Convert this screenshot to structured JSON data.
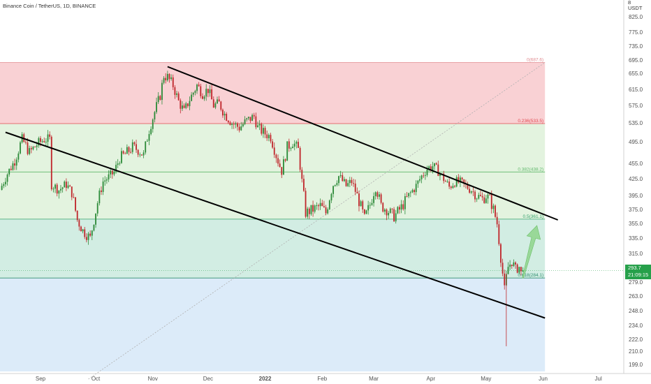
{
  "symbol_title": "Binance Coin / TetherUS, 1D, BINANCE",
  "axis_unit": [
    "8",
    "USDT"
  ],
  "current_price": "293.7",
  "countdown": "21:09:15",
  "colors": {
    "up": "#2e8b3a",
    "down": "#c0282d",
    "zone_red": "#f9d1d4",
    "zone_green": "#e3f3df",
    "zone_teal": "#d2ede3",
    "zone_blue": "#dcebf9",
    "badge": "#26a04a",
    "arrow": "#8fd48b"
  },
  "chart_data": {
    "type": "candlestick",
    "title": "Binance Coin / TetherUS, 1D, BINANCE",
    "ylabel": "USDT",
    "ylim": [
      186,
      870
    ],
    "xlim": [
      "2021-08-10",
      "2022-07-11"
    ],
    "y_ticks": [
      "825.0",
      "775.0",
      "735.0",
      "695.0",
      "655.0",
      "615.0",
      "575.0",
      "535.0",
      "495.0",
      "455.0",
      "425.0",
      "395.0",
      "375.0",
      "355.0",
      "335.0",
      "315.0",
      "279.0",
      "263.0",
      "248.0",
      "234.0",
      "222.0",
      "210.0",
      "199.0"
    ],
    "x_ticks": [
      {
        "label": "Sep",
        "date": "2021-09-01"
      },
      {
        "label": "Oct",
        "date": "2021-10-01"
      },
      {
        "label": "Nov",
        "date": "2021-11-01"
      },
      {
        "label": "Dec",
        "date": "2021-12-01"
      },
      {
        "label": "2022",
        "date": "2022-01-01"
      },
      {
        "label": "Feb",
        "date": "2022-02-01"
      },
      {
        "label": "Mar",
        "date": "2022-03-01"
      },
      {
        "label": "Apr",
        "date": "2022-04-01"
      },
      {
        "label": "May",
        "date": "2022-05-01"
      },
      {
        "label": "Jun",
        "date": "2022-06-01"
      },
      {
        "label": "Jul",
        "date": "2022-07-01"
      }
    ],
    "fib_levels": [
      {
        "label": "0(687.6)",
        "value": 687.6,
        "color": "#e08a8f"
      },
      {
        "label": "0.236(533.5)",
        "value": 533.5,
        "color": "#e0474f"
      },
      {
        "label": "0.382(438.2)",
        "value": 438.2,
        "color": "#5fb86a"
      },
      {
        "label": "0.5(361.1)",
        "value": 361.1,
        "color": "#33a06a"
      },
      {
        "label": "0.618(284.1)",
        "value": 284.1,
        "color": "#2f8e70"
      }
    ],
    "series_close": [
      {
        "date": "2021-08-10",
        "close": 405
      },
      {
        "date": "2021-08-14",
        "close": 435
      },
      {
        "date": "2021-08-18",
        "close": 460
      },
      {
        "date": "2021-08-22",
        "close": 500
      },
      {
        "date": "2021-08-26",
        "close": 475
      },
      {
        "date": "2021-08-30",
        "close": 490
      },
      {
        "date": "2021-09-03",
        "close": 500
      },
      {
        "date": "2021-09-06",
        "close": 500
      },
      {
        "date": "2021-09-07",
        "close": 415
      },
      {
        "date": "2021-09-11",
        "close": 405
      },
      {
        "date": "2021-09-15",
        "close": 415
      },
      {
        "date": "2021-09-18",
        "close": 400
      },
      {
        "date": "2021-09-21",
        "close": 360
      },
      {
        "date": "2021-09-24",
        "close": 345
      },
      {
        "date": "2021-09-26",
        "close": 340
      },
      {
        "date": "2021-09-28",
        "close": 335
      },
      {
        "date": "2021-10-02",
        "close": 385
      },
      {
        "date": "2021-10-05",
        "close": 420
      },
      {
        "date": "2021-10-08",
        "close": 428
      },
      {
        "date": "2021-10-11",
        "close": 438
      },
      {
        "date": "2021-10-14",
        "close": 465
      },
      {
        "date": "2021-10-17",
        "close": 472
      },
      {
        "date": "2021-10-21",
        "close": 485
      },
      {
        "date": "2021-10-24",
        "close": 480
      },
      {
        "date": "2021-10-27",
        "close": 470
      },
      {
        "date": "2021-10-30",
        "close": 520
      },
      {
        "date": "2021-11-02",
        "close": 560
      },
      {
        "date": "2021-11-05",
        "close": 600
      },
      {
        "date": "2021-11-07",
        "close": 650
      },
      {
        "date": "2021-11-09",
        "close": 645
      },
      {
        "date": "2021-11-12",
        "close": 625
      },
      {
        "date": "2021-11-15",
        "close": 585
      },
      {
        "date": "2021-11-18",
        "close": 560
      },
      {
        "date": "2021-11-21",
        "close": 590
      },
      {
        "date": "2021-11-25",
        "close": 625
      },
      {
        "date": "2021-11-28",
        "close": 605
      },
      {
        "date": "2021-12-01",
        "close": 615
      },
      {
        "date": "2021-12-04",
        "close": 575
      },
      {
        "date": "2021-12-07",
        "close": 580
      },
      {
        "date": "2021-12-10",
        "close": 555
      },
      {
        "date": "2021-12-14",
        "close": 535
      },
      {
        "date": "2021-12-18",
        "close": 525
      },
      {
        "date": "2021-12-22",
        "close": 540
      },
      {
        "date": "2021-12-26",
        "close": 550
      },
      {
        "date": "2021-12-28",
        "close": 525
      },
      {
        "date": "2021-12-31",
        "close": 515
      },
      {
        "date": "2022-01-04",
        "close": 505
      },
      {
        "date": "2022-01-07",
        "close": 470
      },
      {
        "date": "2022-01-10",
        "close": 440
      },
      {
        "date": "2022-01-13",
        "close": 485
      },
      {
        "date": "2022-01-16",
        "close": 495
      },
      {
        "date": "2022-01-19",
        "close": 480
      },
      {
        "date": "2022-01-21",
        "close": 420
      },
      {
        "date": "2022-01-23",
        "close": 370
      },
      {
        "date": "2022-01-27",
        "close": 375
      },
      {
        "date": "2022-01-31",
        "close": 380
      },
      {
        "date": "2022-02-03",
        "close": 370
      },
      {
        "date": "2022-02-07",
        "close": 415
      },
      {
        "date": "2022-02-10",
        "close": 430
      },
      {
        "date": "2022-02-14",
        "close": 412
      },
      {
        "date": "2022-02-17",
        "close": 420
      },
      {
        "date": "2022-02-20",
        "close": 395
      },
      {
        "date": "2022-02-24",
        "close": 362
      },
      {
        "date": "2022-02-27",
        "close": 382
      },
      {
        "date": "2022-03-02",
        "close": 410
      },
      {
        "date": "2022-03-05",
        "close": 380
      },
      {
        "date": "2022-03-08",
        "close": 375
      },
      {
        "date": "2022-03-12",
        "close": 365
      },
      {
        "date": "2022-03-16",
        "close": 378
      },
      {
        "date": "2022-03-20",
        "close": 395
      },
      {
        "date": "2022-03-24",
        "close": 412
      },
      {
        "date": "2022-03-27",
        "close": 430
      },
      {
        "date": "2022-03-30",
        "close": 445
      },
      {
        "date": "2022-04-02",
        "close": 450
      },
      {
        "date": "2022-04-05",
        "close": 440
      },
      {
        "date": "2022-04-08",
        "close": 425
      },
      {
        "date": "2022-04-11",
        "close": 410
      },
      {
        "date": "2022-04-14",
        "close": 420
      },
      {
        "date": "2022-04-17",
        "close": 418
      },
      {
        "date": "2022-04-20",
        "close": 412
      },
      {
        "date": "2022-04-23",
        "close": 405
      },
      {
        "date": "2022-04-26",
        "close": 395
      },
      {
        "date": "2022-04-29",
        "close": 390
      },
      {
        "date": "2022-05-01",
        "close": 395
      },
      {
        "date": "2022-05-03",
        "close": 390
      },
      {
        "date": "2022-05-05",
        "close": 375
      },
      {
        "date": "2022-05-07",
        "close": 355
      },
      {
        "date": "2022-05-09",
        "close": 310
      },
      {
        "date": "2022-05-10",
        "close": 290
      },
      {
        "date": "2022-05-11",
        "close": 270
      },
      {
        "date": "2022-05-12",
        "close": 285
      },
      {
        "date": "2022-05-13",
        "close": 298
      },
      {
        "date": "2022-05-15",
        "close": 305
      },
      {
        "date": "2022-05-17",
        "close": 295
      },
      {
        "date": "2022-05-19",
        "close": 298
      },
      {
        "date": "2022-05-20",
        "close": 290
      },
      {
        "date": "2022-05-21",
        "close": 293.7
      }
    ],
    "annotations": {
      "lower_channel": [
        {
          "date": "2021-08-13",
          "price": 515
        },
        {
          "date": "2022-06-02",
          "price": 241
        }
      ],
      "upper_channel": [
        {
          "date": "2021-11-09",
          "price": 675
        },
        {
          "date": "2022-06-09",
          "price": 360
        }
      ],
      "diagonal_dotted": [
        {
          "date": "2021-09-27",
          "price": 186
        },
        {
          "date": "2022-06-02",
          "price": 687.6
        }
      ],
      "fib_zone_end": "2022-06-02",
      "projection_arrow": [
        {
          "date": "2022-05-21",
          "price": 284.1
        },
        {
          "date": "2022-06-09",
          "price": 360
        }
      ]
    }
  }
}
